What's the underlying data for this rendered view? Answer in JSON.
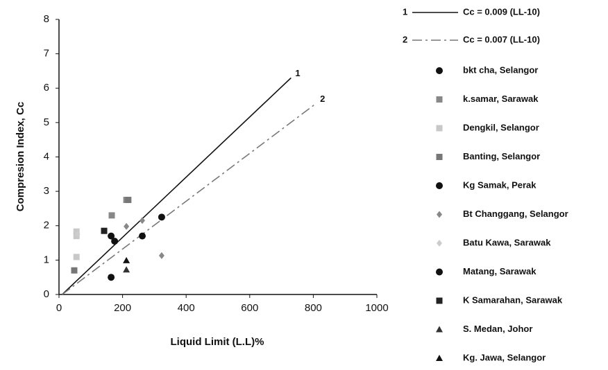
{
  "chart_data": {
    "type": "scatter",
    "xlabel": "Liquid Limit (L.L)%",
    "ylabel": "Compresion Index, Cc",
    "xlim": [
      0,
      1000
    ],
    "ylim": [
      0,
      8
    ],
    "xticks": [
      0,
      200,
      400,
      600,
      800,
      1000
    ],
    "yticks": [
      0,
      1,
      2,
      3,
      4,
      5,
      6,
      7,
      8
    ],
    "lines": [
      {
        "label": "1",
        "name": "Cc = 0.009 (LL-10)",
        "color": "#111111",
        "dash": "solid",
        "x": [
          10,
          730
        ],
        "values": [
          0,
          6.3
        ]
      },
      {
        "label": "2",
        "name": "Cc = 0.007 (LL-10)",
        "color": "#777777",
        "dash": "dashdot",
        "x": [
          10,
          808
        ],
        "values": [
          0,
          5.55
        ]
      }
    ],
    "series": [
      {
        "name": "bkt cha, Selangor",
        "color": "#111111",
        "marker": "circle",
        "x": [
          164
        ],
        "values": [
          0.5
        ]
      },
      {
        "name": "k.samar, Sarawak",
        "color": "#888888",
        "marker": "square",
        "x": [
          166,
          212
        ],
        "values": [
          2.3,
          2.75
        ]
      },
      {
        "name": "Dengkil, Selangor",
        "color": "#c8c8c8",
        "marker": "square",
        "x": [
          55,
          55,
          55
        ],
        "values": [
          1.83,
          1.7,
          1.09
        ]
      },
      {
        "name": "Banting, Selangor",
        "color": "#777777",
        "marker": "square",
        "x": [
          218,
          48
        ],
        "values": [
          2.75,
          0.7
        ]
      },
      {
        "name": "Kg Samak, Perak",
        "color": "#111111",
        "marker": "circle",
        "x": [
          323,
          262
        ],
        "values": [
          2.25,
          1.7
        ]
      },
      {
        "name": "Bt Changgang, Selangor",
        "color": "#888888",
        "marker": "diamond",
        "x": [
          212,
          262,
          323
        ],
        "values": [
          1.98,
          2.15,
          1.13
        ]
      },
      {
        "name": "Batu Kawa, Sarawak",
        "color": "#cccccc",
        "marker": "diamond",
        "x": [
          58
        ],
        "values": [
          1.75
        ]
      },
      {
        "name": "Matang, Sarawak",
        "color": "#111111",
        "marker": "circle",
        "x": [
          164,
          175
        ],
        "values": [
          1.7,
          1.55
        ]
      },
      {
        "name": "K Samarahan, Sarawak",
        "color": "#222222",
        "marker": "square",
        "x": [
          142
        ],
        "values": [
          1.85
        ]
      },
      {
        "name": "S. Medan, Johor",
        "color": "#333333",
        "marker": "triangle",
        "x": [
          212
        ],
        "values": [
          0.72
        ]
      },
      {
        "name": "Kg. Jawa, Selangor",
        "color": "#111111",
        "marker": "triangle",
        "x": [
          212
        ],
        "values": [
          0.99
        ]
      }
    ]
  }
}
